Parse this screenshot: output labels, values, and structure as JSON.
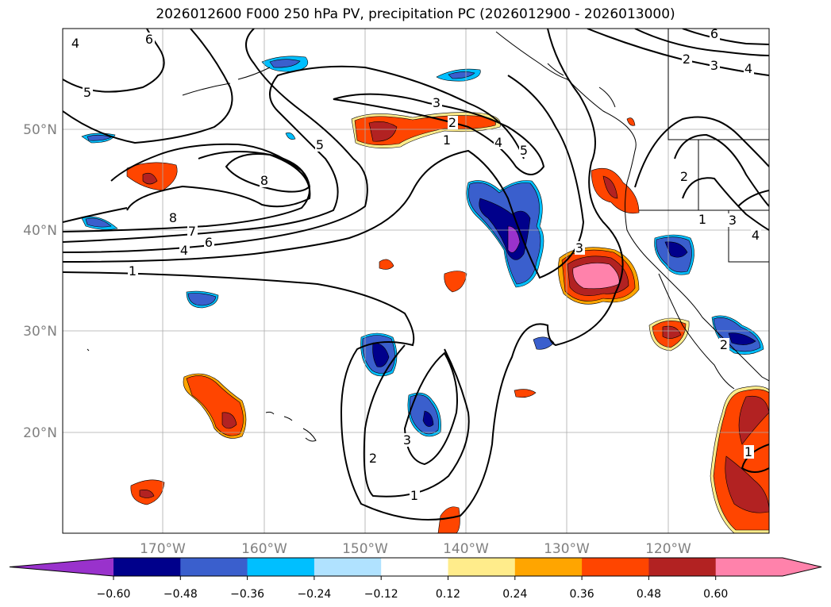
{
  "title": "2026012600 F000 250 hPa PV, precipitation PC (2026012900 - 2026013000)",
  "lat_ticks": [
    "50°N",
    "40°N",
    "30°N",
    "20°N"
  ],
  "lon_ticks": [
    "170°W",
    "160°W",
    "150°W",
    "140°W",
    "130°W",
    "120°W"
  ],
  "colorbar": {
    "ticks": [
      "−0.60",
      "−0.48",
      "−0.36",
      "−0.24",
      "−0.12",
      "0.12",
      "0.24",
      "0.36",
      "0.48",
      "0.60"
    ],
    "colors": [
      "#9932CC",
      "#00008B",
      "#3A5FCD",
      "#00BFFF",
      "#B0E2FF",
      "#FFFFFF",
      "#FFEC8B",
      "#FFA500",
      "#FF4500",
      "#B22222",
      "#FF82AB"
    ],
    "extend_min_color": "#9932CC",
    "extend_max_color": "#FF82AB"
  },
  "contour_labels": [
    "4",
    "6",
    "5",
    "5",
    "8",
    "8",
    "7",
    "6",
    "4",
    "1",
    "3",
    "2",
    "1",
    "4",
    "5",
    "6",
    "2",
    "3",
    "4",
    "2",
    "1",
    "3",
    "4",
    "2",
    "3",
    "1",
    "2",
    "3",
    "1"
  ]
}
